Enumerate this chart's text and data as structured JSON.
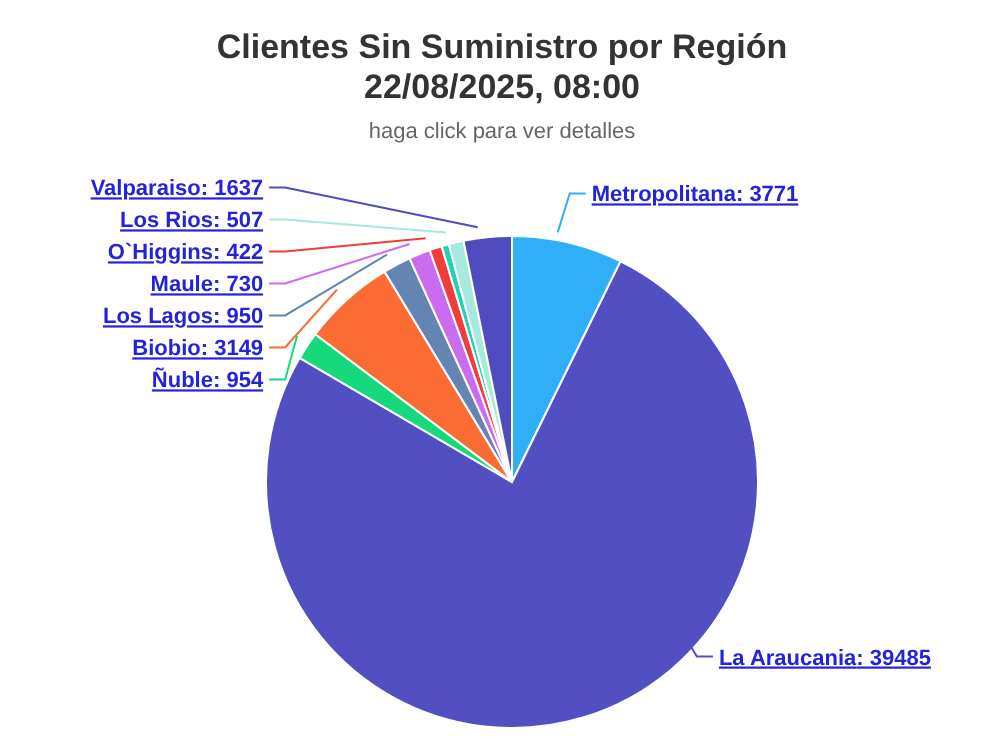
{
  "chart_data": {
    "type": "pie",
    "title": "Clientes Sin Suministro por Región\n22/08/2025, 08:00",
    "subtitle": "haga click para ver detalles",
    "categories": [
      "Metropolitana",
      "La Araucania",
      "Ñuble",
      "Biobio",
      "Los Lagos",
      "Maule",
      "O`Higgins",
      null,
      "Los Rios",
      "Valparaiso"
    ],
    "values": [
      3771,
      39485,
      954,
      3149,
      950,
      730,
      422,
      250,
      507,
      1637
    ],
    "value_labels": [
      ": 3771",
      ": 39485",
      ": 954",
      ": 3149",
      ": 950",
      ": 730",
      ": 422",
      null,
      ": 507",
      ": 1637"
    ],
    "colors": [
      "#2eaff7",
      "#524fc2",
      "#16d97b",
      "#fb6b34",
      "#6485b3",
      "#cb6cf0",
      "#f23c3c",
      "#1ed3b0",
      "#a5e9e0",
      "#4f4cbf"
    ],
    "legend": false
  }
}
